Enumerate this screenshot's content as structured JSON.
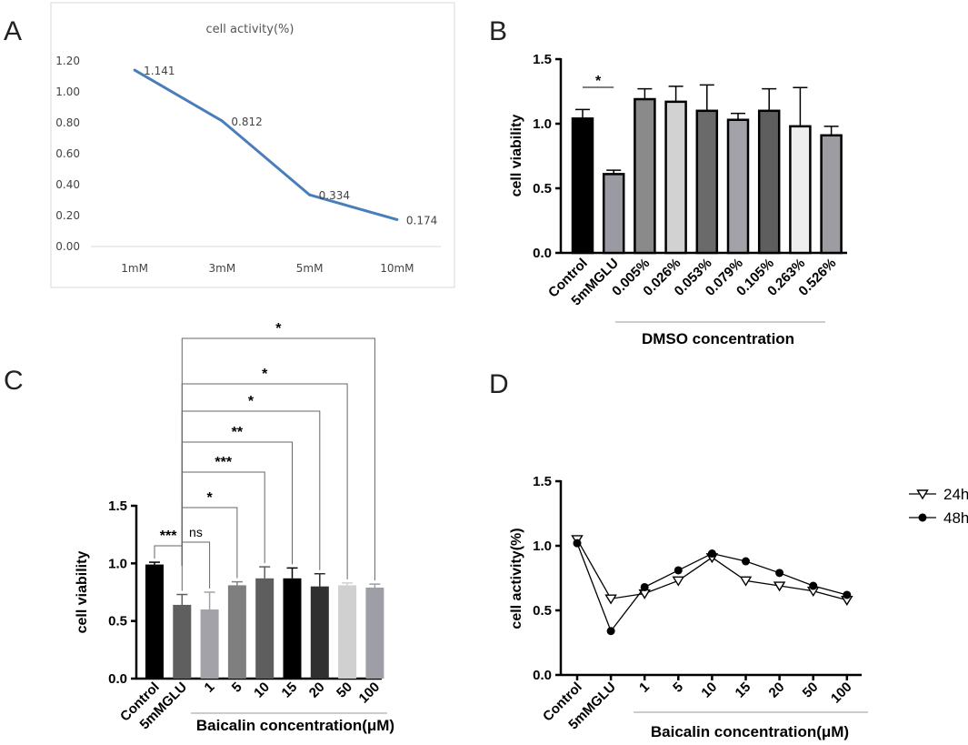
{
  "chart_data": [
    {
      "panel": "A",
      "type": "line",
      "title": "cell activity(%)",
      "categories": [
        "1mM",
        "3mM",
        "5mM",
        "10mM"
      ],
      "values": [
        1.141,
        0.812,
        0.334,
        0.174
      ],
      "data_labels": [
        "1.141",
        "0.812",
        "0.334",
        "0.174"
      ],
      "yticks": [
        "0.00",
        "0.20",
        "0.40",
        "0.60",
        "0.80",
        "1.00",
        "1.20"
      ],
      "ylim": [
        0,
        1.2
      ],
      "color": "#4a7ebb"
    },
    {
      "panel": "B",
      "type": "bar",
      "ylabel": "cell viability",
      "xlabel": "DMSO  concentration",
      "categories": [
        "Control",
        "5mMGLU",
        "0.005%",
        "0.026%",
        "0.053%",
        "0.079%",
        "0.105%",
        "0.263%",
        "0.526%"
      ],
      "values": [
        1.04,
        0.61,
        1.19,
        1.17,
        1.1,
        1.03,
        1.1,
        0.98,
        0.91
      ],
      "errors": [
        0.07,
        0.03,
        0.08,
        0.12,
        0.2,
        0.05,
        0.17,
        0.3,
        0.07
      ],
      "colors": [
        "#000000",
        "#9a9aa2",
        "#8a8a8a",
        "#d2d2d2",
        "#6a6a6a",
        "#a2a2a8",
        "#5e5e5e",
        "#eeeeee",
        "#9c9ca2"
      ],
      "yticks": [
        "0.0",
        "0.5",
        "1.0",
        "1.5"
      ],
      "ylim": [
        0,
        1.5
      ],
      "annotations": [
        {
          "text": "*",
          "from": 0,
          "to": 1
        }
      ]
    },
    {
      "panel": "C",
      "type": "bar",
      "ylabel": "cell viability",
      "xlabel": "Baicalin concentration(μM)",
      "categories": [
        "Control",
        "5mMGLU",
        "1",
        "5",
        "10",
        "15",
        "20",
        "50",
        "100"
      ],
      "values": [
        0.99,
        0.64,
        0.6,
        0.81,
        0.87,
        0.87,
        0.8,
        0.81,
        0.79
      ],
      "errors": [
        0.02,
        0.09,
        0.15,
        0.03,
        0.1,
        0.09,
        0.11,
        0.02,
        0.03
      ],
      "colors": [
        "#000000",
        "#5f5f5f",
        "#a2a2a8",
        "#7f7f7f",
        "#5e5e5e",
        "#000000",
        "#303030",
        "#d0d0d0",
        "#9e9ea6"
      ],
      "yticks": [
        "0.0",
        "0.5",
        "1.0",
        "1.5"
      ],
      "ylim": [
        0,
        1.5
      ],
      "annotations": [
        {
          "text": "***",
          "from": 0,
          "to": 1
        },
        {
          "text": "ns",
          "from": 1,
          "to": 2
        },
        {
          "text": "*",
          "from": 1,
          "to": 3
        },
        {
          "text": "***",
          "from": 1,
          "to": 4
        },
        {
          "text": "**",
          "from": 1,
          "to": 5
        },
        {
          "text": "*",
          "from": 1,
          "to": 6
        },
        {
          "text": "*",
          "from": 1,
          "to": 7
        },
        {
          "text": "*",
          "from": 1,
          "to": 8
        }
      ]
    },
    {
      "panel": "D",
      "type": "line",
      "ylabel": "cell activity(%)",
      "xlabel": "Baicalin concentration(μM)",
      "categories": [
        "Control",
        "5mMGLU",
        "1",
        "5",
        "10",
        "15",
        "20",
        "50",
        "100"
      ],
      "yticks": [
        "0.0",
        "0.5",
        "1.0",
        "1.5"
      ],
      "ylim": [
        0,
        1.5
      ],
      "series": [
        {
          "name": "24h",
          "marker": "triangle-down",
          "values": [
            1.05,
            0.59,
            0.63,
            0.73,
            0.91,
            0.73,
            0.69,
            0.65,
            0.58
          ]
        },
        {
          "name": "48h",
          "marker": "circle",
          "values": [
            1.02,
            0.34,
            0.68,
            0.81,
            0.94,
            0.88,
            0.79,
            0.69,
            0.62
          ]
        }
      ]
    }
  ]
}
